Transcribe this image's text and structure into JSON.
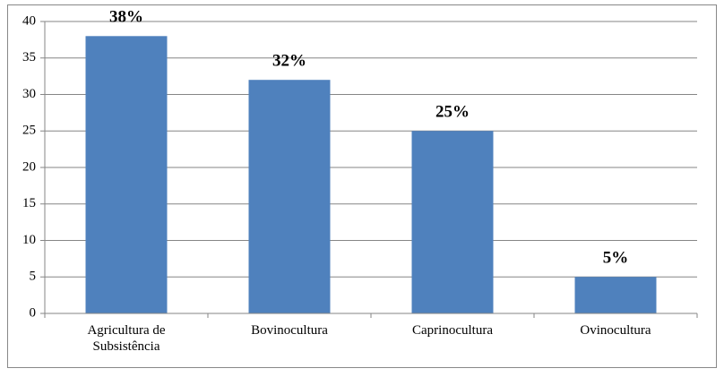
{
  "chart_data": {
    "type": "bar",
    "categories": [
      "Agricultura de Subsistência",
      "Bovinocultura",
      "Caprinocultura",
      "Ovinocultura"
    ],
    "values": [
      38,
      32,
      25,
      5
    ],
    "value_labels": [
      "38%",
      "32%",
      "25%",
      "5%"
    ],
    "color": "#4f81bd",
    "ylim": [
      0,
      40
    ],
    "yticks": [
      0,
      5,
      10,
      15,
      20,
      25,
      30,
      35,
      40
    ],
    "grid": true
  }
}
